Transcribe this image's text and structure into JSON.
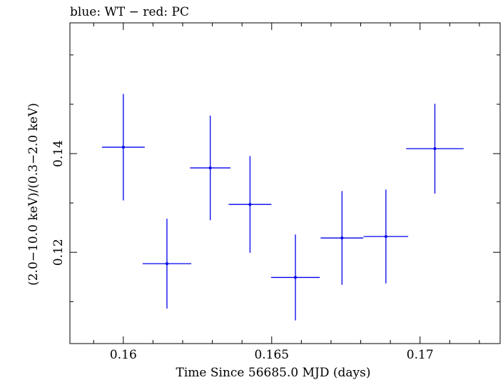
{
  "chart_data": {
    "type": "scatter",
    "title": "blue: WT − red: PC",
    "xlabel": "Time Since 56685.0 MJD (days)",
    "ylabel": "(2.0−10.0 keV)/(0.3−2.0 keV)",
    "xlim": [
      0.1582,
      0.1727
    ],
    "ylim": [
      0.1015,
      0.1665
    ],
    "x_ticks": [
      0.16,
      0.165,
      0.17
    ],
    "x_tick_labels": [
      "0.16",
      "0.165",
      "0.17"
    ],
    "y_ticks": [
      0.12,
      0.14
    ],
    "y_tick_labels": [
      "0.12",
      "0.14"
    ],
    "grid": false,
    "series": [
      {
        "color": "#0000ee",
        "points": [
          {
            "x": 0.16,
            "xerr": 0.00072,
            "y": 0.1413,
            "yerr": 0.0108
          },
          {
            "x": 0.16147,
            "xerr": 0.00082,
            "y": 0.1177,
            "yerr": 0.0091
          },
          {
            "x": 0.16293,
            "xerr": 0.00068,
            "y": 0.1371,
            "yerr": 0.0106
          },
          {
            "x": 0.16427,
            "xerr": 0.00072,
            "y": 0.1297,
            "yerr": 0.0098
          },
          {
            "x": 0.1658,
            "xerr": 0.00082,
            "y": 0.1149,
            "yerr": 0.0087
          },
          {
            "x": 0.16737,
            "xerr": 0.00072,
            "y": 0.1229,
            "yerr": 0.0095
          },
          {
            "x": 0.16885,
            "xerr": 0.00075,
            "y": 0.1232,
            "yerr": 0.0095
          },
          {
            "x": 0.1705,
            "xerr": 0.00097,
            "y": 0.141,
            "yerr": 0.0091
          }
        ]
      }
    ]
  }
}
